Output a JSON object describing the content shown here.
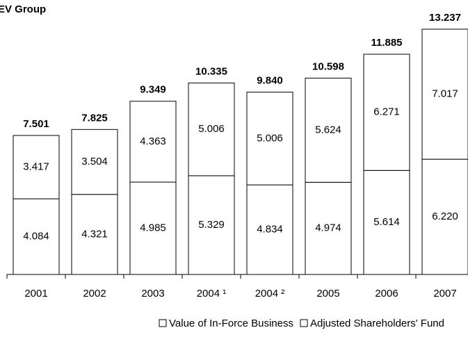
{
  "chart_data": {
    "type": "stacked_bar",
    "title": "EV Group",
    "categories": [
      "2001",
      "2002",
      "2003",
      "2004 ¹",
      "2004 ²",
      "2005",
      "2006",
      "2007"
    ],
    "series": [
      {
        "name": "Adjusted Shareholders' Fund",
        "color": "#ffffff",
        "values": [
          4.084,
          4.321,
          4.985,
          5.329,
          4.834,
          4.974,
          5.614,
          6.22
        ],
        "value_labels": [
          "4.084",
          "4.321",
          "4.985",
          "5.329",
          "4.834",
          "4.974",
          "5.614",
          "6.220"
        ]
      },
      {
        "name": "Value of In-Force Business",
        "color": "#ffffff",
        "values": [
          3.417,
          3.504,
          4.363,
          5.006,
          5.006,
          5.624,
          6.271,
          7.017
        ],
        "value_labels": [
          "3.417",
          "3.504",
          "4.363",
          "5.006",
          "5.006",
          "5.624",
          "6.271",
          "7.017"
        ]
      }
    ],
    "totals": [
      "7.501",
      "7.825",
      "9.349",
      "10.335",
      "9.840",
      "10.598",
      "11.885",
      "13.237"
    ],
    "legend_order": [
      1,
      0
    ]
  }
}
